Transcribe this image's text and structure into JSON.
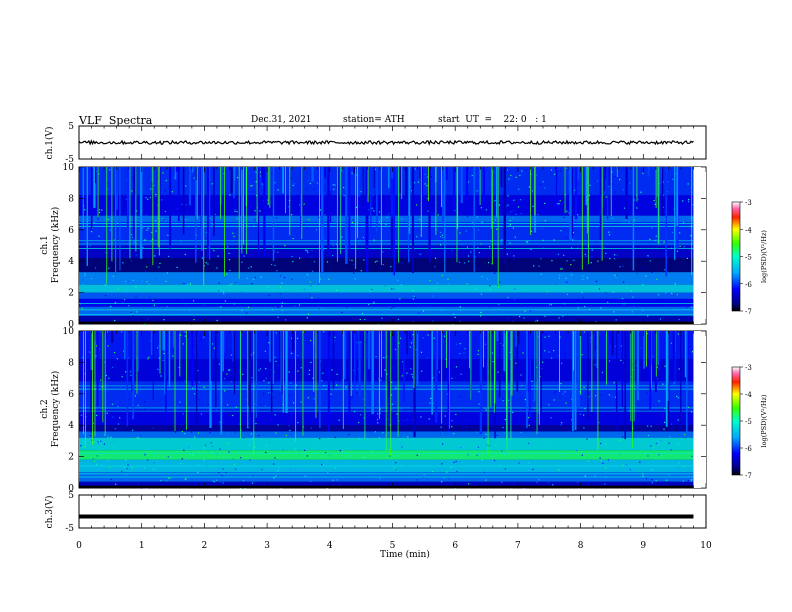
{
  "header": {
    "title": "VLF  Spectra",
    "date": "Dec.31, 2021",
    "station": "station= ATH",
    "start": "start  UT  =    22: 0   : 1"
  },
  "chart_data": [
    {
      "type": "line",
      "panel": "ch1-waveform",
      "ylabel": "ch.1(V)",
      "ylim": [
        -5,
        5
      ],
      "yticks": [
        "5",
        "-5"
      ],
      "x_range_min": [
        0,
        9.8
      ],
      "signal_mean_V": 0,
      "signal_amplitude_V": 0.5,
      "color": "#000000"
    },
    {
      "type": "heatmap",
      "panel": "ch1-spectrogram",
      "ylabel": "ch.1\nFrequency  (kHz)",
      "ylim": [
        0,
        10
      ],
      "yticks": [
        "0",
        "2",
        "4",
        "6",
        "8",
        "10"
      ],
      "x_range_min": [
        0,
        9.8
      ],
      "colorbar": {
        "label": "log(PSD)(V²/Hz)",
        "range": [
          -7,
          -3
        ],
        "ticks": [
          "-3",
          "-4",
          "-5",
          "-6",
          "-7"
        ]
      }
    },
    {
      "type": "heatmap",
      "panel": "ch2-spectrogram",
      "ylabel": "ch.2\nFrequency  (kHz)",
      "ylim": [
        0,
        10
      ],
      "yticks": [
        "0",
        "2",
        "4",
        "6",
        "8",
        "10"
      ],
      "x_range_min": [
        0,
        9.8
      ],
      "colorbar": {
        "label": "log(PSD)(V²/Hz)",
        "range": [
          -7,
          -3
        ],
        "ticks": [
          "-3",
          "-4",
          "-5",
          "-6",
          "-7"
        ]
      }
    },
    {
      "type": "line",
      "panel": "ch3-waveform",
      "ylabel": "ch.3(V)",
      "ylim": [
        -5,
        5
      ],
      "yticks": [
        "5",
        "-5"
      ],
      "x_range_min": [
        0,
        9.8
      ],
      "signal_mean_V": -1.5,
      "color": "#000000"
    }
  ],
  "xaxis": {
    "label": "Time  (min)",
    "range": [
      0,
      10
    ],
    "ticks": [
      "0",
      "1",
      "2",
      "3",
      "4",
      "5",
      "6",
      "7",
      "8",
      "9",
      "10"
    ]
  },
  "colors": {
    "frame": "#000000",
    "background": "#ffffff"
  }
}
